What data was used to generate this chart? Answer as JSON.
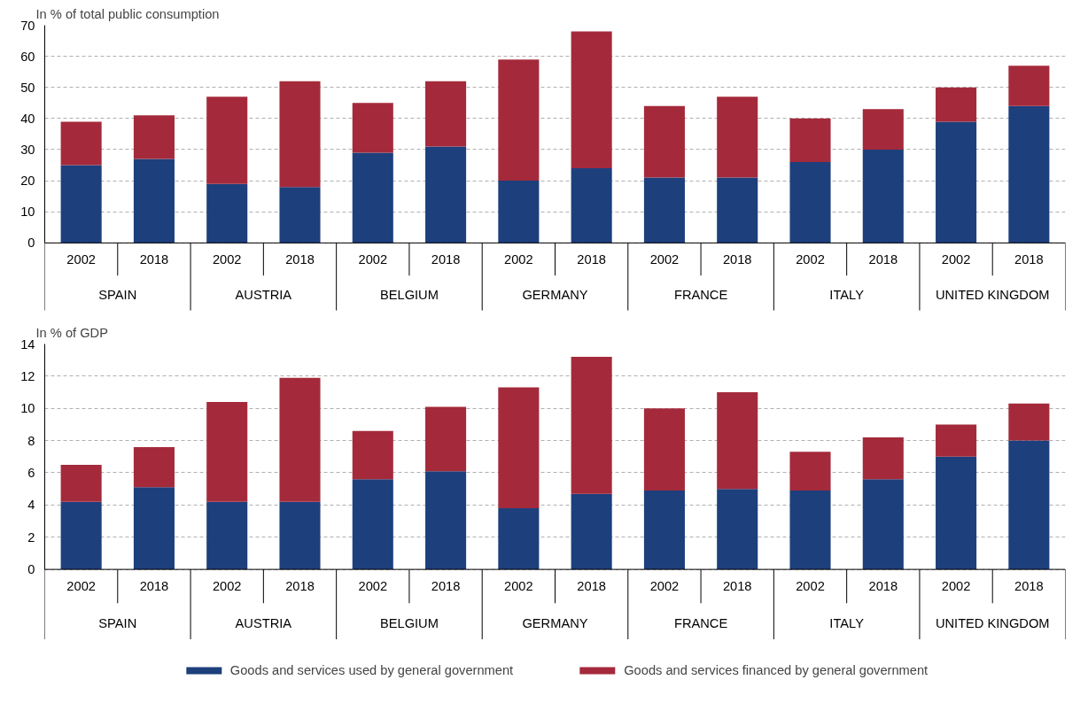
{
  "chart_data": [
    {
      "type": "bar",
      "stacked": true,
      "ylabel": "In % of total public consumption",
      "categories": [
        "2002",
        "2018",
        "2002",
        "2018",
        "2002",
        "2018",
        "2002",
        "2018",
        "2002",
        "2018",
        "2002",
        "2018",
        "2002",
        "2018"
      ],
      "annotations": [
        "SPAIN",
        "AUSTRIA",
        "BELGIUM",
        "GERMANY",
        "FRANCE",
        "ITALY",
        "UNITED KINGDOM"
      ],
      "series": [
        {
          "color": "#1d3f7c",
          "values": [
            25,
            27,
            19,
            18,
            29,
            31,
            20,
            24,
            21,
            21,
            26,
            30,
            39,
            44
          ]
        },
        {
          "color": "#a42a3b",
          "values": [
            14,
            14,
            28,
            34,
            16,
            21,
            39,
            44,
            23,
            26,
            14,
            13,
            11,
            13
          ]
        }
      ],
      "ylim": [
        0,
        70
      ],
      "yticks": [
        0,
        10,
        20,
        30,
        40,
        50,
        60,
        70
      ],
      "grid": "y",
      "legend": false
    },
    {
      "type": "bar",
      "stacked": true,
      "ylabel": "In % of GDP",
      "categories": [
        "2002",
        "2018",
        "2002",
        "2018",
        "2002",
        "2018",
        "2002",
        "2018",
        "2002",
        "2018",
        "2002",
        "2018",
        "2002",
        "2018"
      ],
      "annotations": [
        "SPAIN",
        "AUSTRIA",
        "BELGIUM",
        "GERMANY",
        "FRANCE",
        "ITALY",
        "UNITED KINGDOM"
      ],
      "series": [
        {
          "name": "Goods and services used by general government",
          "color": "#1d3f7c",
          "values": [
            4.2,
            5.1,
            4.2,
            4.2,
            5.6,
            6.1,
            3.8,
            4.7,
            4.9,
            5.0,
            4.9,
            5.6,
            7.0,
            8.0
          ]
        },
        {
          "name": "Goods and services financed by general government",
          "color": "#a42a3b",
          "values": [
            2.3,
            2.5,
            6.2,
            7.7,
            3.0,
            4.0,
            7.5,
            8.5,
            5.1,
            6.0,
            2.4,
            2.6,
            2.0,
            2.3
          ]
        }
      ],
      "ylim": [
        0,
        14
      ],
      "yticks": [
        0,
        2,
        4,
        6,
        8,
        10,
        12,
        14
      ],
      "grid": "y",
      "legend": "bottom"
    }
  ]
}
